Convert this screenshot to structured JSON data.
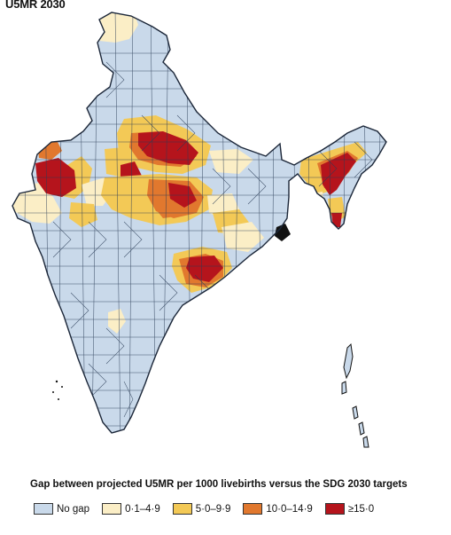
{
  "title": "U5MR 2030",
  "legend": {
    "title": "Gap between projected U5MR per 1000 livebirths versus the SDG 2030 targets",
    "items": [
      {
        "label": "No gap",
        "color": "#c9d9ea"
      },
      {
        "label": "0·1–4·9",
        "color": "#fbeec6"
      },
      {
        "label": "5·0–9·9",
        "color": "#f3c956"
      },
      {
        "label": "10·0–14·9",
        "color": "#e1782e"
      },
      {
        "label": "≥15·0",
        "color": "#b5141c"
      }
    ]
  }
}
